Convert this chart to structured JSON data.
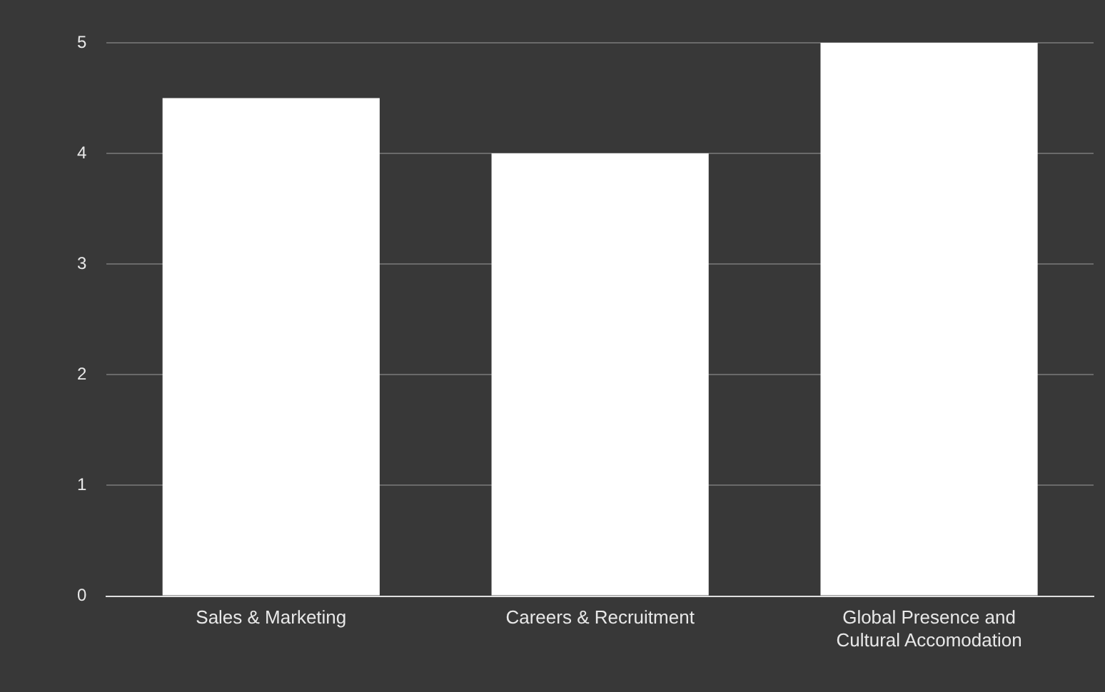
{
  "chart_data": {
    "type": "bar",
    "categories": [
      "Sales & Marketing",
      "Careers & Recruitment",
      "Global Presence and Cultural Accomodation"
    ],
    "values": [
      4.5,
      4,
      5
    ],
    "color": "#ffffff",
    "ylim": [
      0,
      5
    ],
    "yticks": [
      0,
      1,
      2,
      3,
      4,
      5
    ],
    "grid": "y",
    "legend": false
  }
}
